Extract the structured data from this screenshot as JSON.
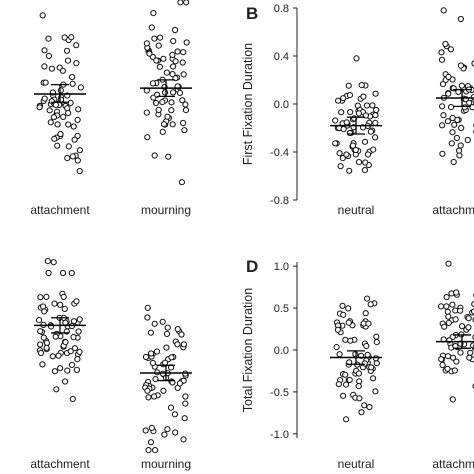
{
  "chart_data": [
    {
      "type": "scatter",
      "panel_letter": "",
      "ylabel": "",
      "categories": [
        "attachment",
        "mourning"
      ],
      "ylim": [
        -0.8,
        0.8
      ],
      "y_ticks": [],
      "y_tick_labels": [],
      "y_axis_visible": false,
      "grid": false,
      "series": [
        {
          "category": "attachment",
          "mean": 0.0,
          "ci_low": -0.07,
          "ci_high": 0.08,
          "n_points": 70,
          "spread": 0.33
        },
        {
          "category": "mourning",
          "mean": 0.05,
          "ci_low": -0.02,
          "ci_high": 0.12,
          "n_points": 70,
          "spread": 0.33
        }
      ]
    },
    {
      "type": "scatter",
      "panel_letter": "B",
      "ylabel": "First Fixation Duration",
      "categories": [
        "neutral",
        "attachment"
      ],
      "ylim": [
        -0.8,
        0.8
      ],
      "y_ticks": [
        -0.8,
        -0.4,
        0.0,
        0.4,
        0.8
      ],
      "y_tick_labels": [
        "-0.8",
        "-0.4",
        "0.0",
        "0.4",
        "0.8"
      ],
      "y_axis_visible": true,
      "grid": false,
      "series": [
        {
          "category": "neutral",
          "mean": -0.18,
          "ci_low": -0.25,
          "ci_high": -0.11,
          "n_points": 70,
          "spread": 0.22
        },
        {
          "category": "attachment",
          "mean": 0.05,
          "ci_low": -0.02,
          "ci_high": 0.12,
          "n_points": 70,
          "spread": 0.22
        }
      ]
    },
    {
      "type": "scatter",
      "panel_letter": "",
      "ylabel": "",
      "categories": [
        "attachment",
        "mourning"
      ],
      "ylim": [
        -1.05,
        1.05
      ],
      "y_ticks": [],
      "y_tick_labels": [],
      "y_axis_visible": false,
      "grid": false,
      "series": [
        {
          "category": "attachment",
          "mean": 0.28,
          "ci_low": 0.2,
          "ci_high": 0.36,
          "n_points": 70,
          "spread": 0.33
        },
        {
          "category": "mourning",
          "mean": -0.22,
          "ci_low": -0.3,
          "ci_high": -0.14,
          "n_points": 70,
          "spread": 0.33
        }
      ]
    },
    {
      "type": "scatter",
      "panel_letter": "D",
      "ylabel": "Total Fixation Duration",
      "categories": [
        "neutral",
        "attachment"
      ],
      "ylim": [
        -1.05,
        1.05
      ],
      "y_ticks": [
        -1.0,
        -0.5,
        0.0,
        0.5,
        1.0
      ],
      "y_tick_labels": [
        "-1.0",
        "-0.5",
        "0.0",
        "0.5",
        "1.0"
      ],
      "y_axis_visible": true,
      "grid": false,
      "series": [
        {
          "category": "neutral",
          "mean": -0.09,
          "ci_low": -0.17,
          "ci_high": -0.01,
          "n_points": 70,
          "spread": 0.36
        },
        {
          "category": "attachment",
          "mean": 0.1,
          "ci_low": 0.02,
          "ci_high": 0.18,
          "n_points": 70,
          "spread": 0.36
        }
      ]
    }
  ]
}
